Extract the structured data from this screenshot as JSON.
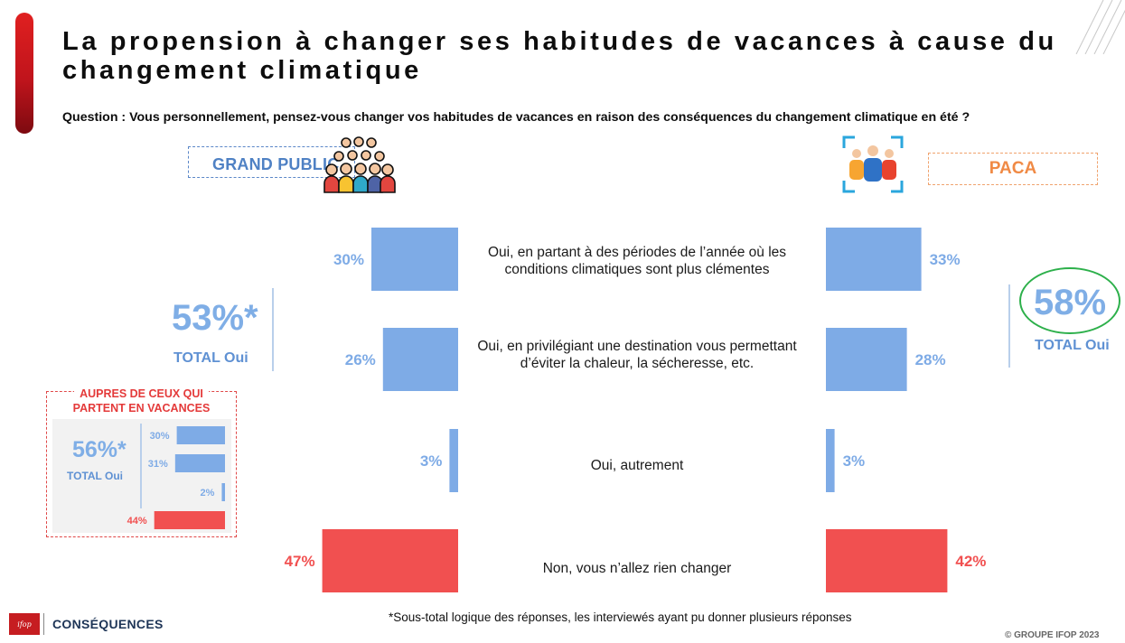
{
  "title": "La propension à changer ses habitudes de vacances à cause du changement climatique",
  "question": "Question : Vous personnellement, pensez-vous changer vos habitudes de vacances en raison des conséquences du changement climatique en été ?",
  "colors": {
    "yes": "#7eabe6",
    "no": "#f15050",
    "accent": "#c0141c",
    "highlight": "#2db04b"
  },
  "left_panel": {
    "label": "GRAND PUBLIC",
    "icon": "crowd-icon",
    "total_value": "53%*",
    "total_label": "TOTAL Oui"
  },
  "right_panel": {
    "label": "PACA",
    "icon": "team-icon",
    "total_value": "58%",
    "total_label": "TOTAL Oui"
  },
  "inset": {
    "header_line1": "AUPRES DE CEUX QUI",
    "header_line2": "PARTENT EN VACANCES",
    "total_value": "56%*",
    "total_label": "TOTAL Oui"
  },
  "chart_data": {
    "type": "bar",
    "orientation": "horizontal",
    "categories": [
      "Oui, en partant à des périodes de l’année où les conditions climatiques sont plus clémentes",
      "Oui, en privilégiant une destination vous permettant d’éviter la chaleur, la sécheresse, etc.",
      "Oui, autrement",
      "Non, vous n’allez rien changer"
    ],
    "series": [
      {
        "name": "GRAND PUBLIC",
        "values": [
          30,
          26,
          3,
          47
        ],
        "labels": [
          "30%",
          "26%",
          "3%",
          "47%"
        ]
      },
      {
        "name": "PACA",
        "values": [
          33,
          28,
          3,
          42
        ],
        "labels": [
          "33%",
          "28%",
          "3%",
          "42%"
        ]
      },
      {
        "name": "AUPRES DE CEUX QUI PARTENT EN VACANCES",
        "values": [
          30,
          31,
          2,
          44
        ],
        "labels": [
          "30%",
          "31%",
          "2%",
          "44%"
        ]
      }
    ],
    "xlim": [
      0,
      100
    ]
  },
  "footnote": "*Sous-total logique des réponses, les interviewés ayant pu donner plusieurs réponses",
  "copyright": "© GROUPE IFOP 2023",
  "logo": {
    "brand": "ifop",
    "name": "CONSÉQUENCES"
  }
}
